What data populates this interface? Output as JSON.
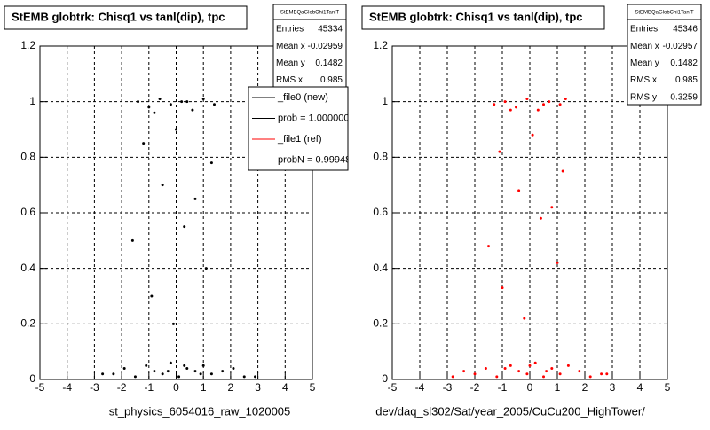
{
  "chart_data": [
    {
      "type": "scatter",
      "title": "StEMB globtrk: Chisq1 vs tanl(dip), tpc",
      "caption": "st_physics_6054016_raw_1020005",
      "color": "#000000",
      "xlim": [
        -5,
        5
      ],
      "ylim": [
        0,
        1.2
      ],
      "xticks": [
        -5,
        -4,
        -3,
        -2,
        -1,
        0,
        1,
        2,
        3,
        4,
        5
      ],
      "yticks": [
        0,
        0.2,
        0.4,
        0.6,
        0.8,
        1,
        1.2
      ],
      "grid": true,
      "x": [
        -2.3,
        -1.9,
        -1.5,
        -1.1,
        -0.8,
        -0.5,
        -0.2,
        0.1,
        0.4,
        0.7,
        1.0,
        1.3,
        1.7,
        2.1,
        2.5,
        -2.7,
        2.9,
        -0.3,
        0.3,
        0.9,
        -1.4,
        -1.0,
        -0.6,
        -0.2,
        0.2,
        0.6,
        1.0,
        1.4,
        -0.8,
        0.4,
        -1.2,
        -0.5,
        0.3,
        1.1,
        -0.9,
        0.7,
        -0.1,
        1.3,
        -1.6,
        0.0
      ],
      "values": [
        0.02,
        0.04,
        0.01,
        0.05,
        0.03,
        0.02,
        0.06,
        0.01,
        0.04,
        0.03,
        0.05,
        0.02,
        0.03,
        0.04,
        0.01,
        0.02,
        0.01,
        0.03,
        0.05,
        0.02,
        1.0,
        0.98,
        1.01,
        0.99,
        1.0,
        0.97,
        1.01,
        0.99,
        0.96,
        1.0,
        0.85,
        0.7,
        0.55,
        0.4,
        0.3,
        0.65,
        0.2,
        0.78,
        0.5,
        0.9
      ],
      "stats": {
        "title": "StEMBQaGlobChi1TanlT",
        "rows": [
          {
            "label": "Entries",
            "value": 45334
          },
          {
            "label": "Mean x",
            "value": -0.02959
          },
          {
            "label": "Mean y",
            "value": 0.1482
          },
          {
            "label": "RMS x",
            "value": 0.985
          }
        ]
      },
      "legend": [
        {
          "label": "_file0 (new)",
          "color": "#000000"
        },
        {
          "label": "prob = 1.000000",
          "color": "#000000"
        },
        {
          "label": "_file1 (ref)",
          "color": "#ff0000"
        },
        {
          "label": "probN = 0.99948",
          "color": "#ff0000"
        }
      ]
    },
    {
      "type": "scatter",
      "title": "StEMB globtrk: Chisq1 vs tanl(dip), tpc",
      "caption": "dev/daq_sl302/Sat/year_2005/CuCu200_HighTower/",
      "color": "#ff0000",
      "xlim": [
        -5,
        5
      ],
      "ylim": [
        0,
        1.2
      ],
      "xticks": [
        -5,
        -4,
        -3,
        -2,
        -1,
        0,
        1,
        2,
        3,
        4,
        5
      ],
      "yticks": [
        0,
        0.2,
        0.4,
        0.6,
        0.8,
        1,
        1.2
      ],
      "grid": true,
      "x": [
        -2.4,
        -2.0,
        -1.6,
        -1.2,
        -0.7,
        -0.4,
        -0.1,
        0.2,
        0.5,
        0.8,
        1.1,
        1.4,
        1.8,
        2.2,
        2.6,
        -2.8,
        2.8,
        -0.9,
        0.0,
        0.6,
        -1.3,
        -0.9,
        -0.5,
        -0.1,
        0.3,
        0.7,
        1.1,
        1.3,
        -0.7,
        0.5,
        -1.1,
        -0.4,
        0.4,
        1.0,
        -1.0,
        0.8,
        -0.2,
        1.2,
        -1.5,
        0.1
      ],
      "values": [
        0.03,
        0.02,
        0.04,
        0.01,
        0.05,
        0.03,
        0.02,
        0.06,
        0.01,
        0.04,
        0.02,
        0.05,
        0.03,
        0.01,
        0.02,
        0.01,
        0.02,
        0.04,
        0.05,
        0.03,
        0.99,
        1.0,
        0.98,
        1.01,
        0.97,
        1.0,
        0.99,
        1.01,
        0.97,
        0.99,
        0.82,
        0.68,
        0.58,
        0.42,
        0.33,
        0.62,
        0.22,
        0.75,
        0.48,
        0.88
      ],
      "stats": {
        "title": "StEMBQaGlobChi1TanlT",
        "rows": [
          {
            "label": "Entries",
            "value": 45346
          },
          {
            "label": "Mean x",
            "value": -0.02957
          },
          {
            "label": "Mean y",
            "value": 0.1482
          },
          {
            "label": "RMS x",
            "value": 0.985
          },
          {
            "label": "RMS y",
            "value": 0.3259
          }
        ]
      }
    }
  ]
}
